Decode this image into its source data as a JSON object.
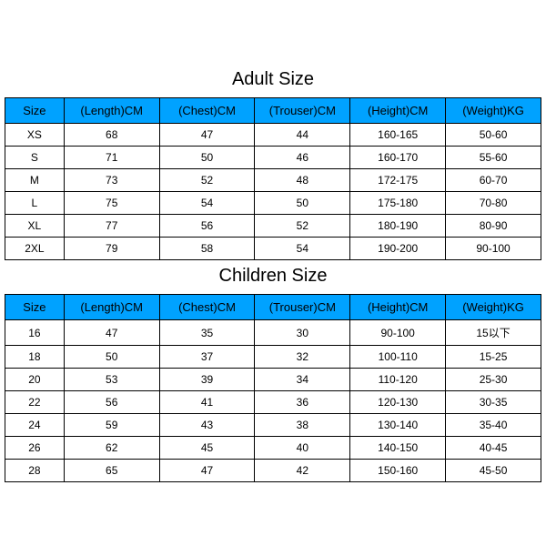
{
  "colors": {
    "header_bg": "#00a2ff",
    "border": "#000000",
    "text": "#000000",
    "background": "#ffffff"
  },
  "fontsize": {
    "title": 20,
    "header": 13,
    "cell": 12
  },
  "adult": {
    "title": "Adult Size",
    "columns": [
      "Size",
      "(Length)CM",
      "(Chest)CM",
      "(Trouser)CM",
      "(Height)CM",
      "(Weight)KG"
    ],
    "rows": [
      [
        "XS",
        "68",
        "47",
        "44",
        "160-165",
        "50-60"
      ],
      [
        "S",
        "71",
        "50",
        "46",
        "160-170",
        "55-60"
      ],
      [
        "M",
        "73",
        "52",
        "48",
        "172-175",
        "60-70"
      ],
      [
        "L",
        "75",
        "54",
        "50",
        "175-180",
        "70-80"
      ],
      [
        "XL",
        "77",
        "56",
        "52",
        "180-190",
        "80-90"
      ],
      [
        "2XL",
        "79",
        "58",
        "54",
        "190-200",
        "90-100"
      ]
    ]
  },
  "children": {
    "title": "Children Size",
    "columns": [
      "Size",
      "(Length)CM",
      "(Chest)CM",
      "(Trouser)CM",
      "(Height)CM",
      "(Weight)KG"
    ],
    "rows": [
      [
        "16",
        "47",
        "35",
        "30",
        "90-100",
        "15以下"
      ],
      [
        "18",
        "50",
        "37",
        "32",
        "100-110",
        "15-25"
      ],
      [
        "20",
        "53",
        "39",
        "34",
        "110-120",
        "25-30"
      ],
      [
        "22",
        "56",
        "41",
        "36",
        "120-130",
        "30-35"
      ],
      [
        "24",
        "59",
        "43",
        "38",
        "130-140",
        "35-40"
      ],
      [
        "26",
        "62",
        "45",
        "40",
        "140-150",
        "40-45"
      ],
      [
        "28",
        "65",
        "47",
        "42",
        "150-160",
        "45-50"
      ]
    ]
  }
}
